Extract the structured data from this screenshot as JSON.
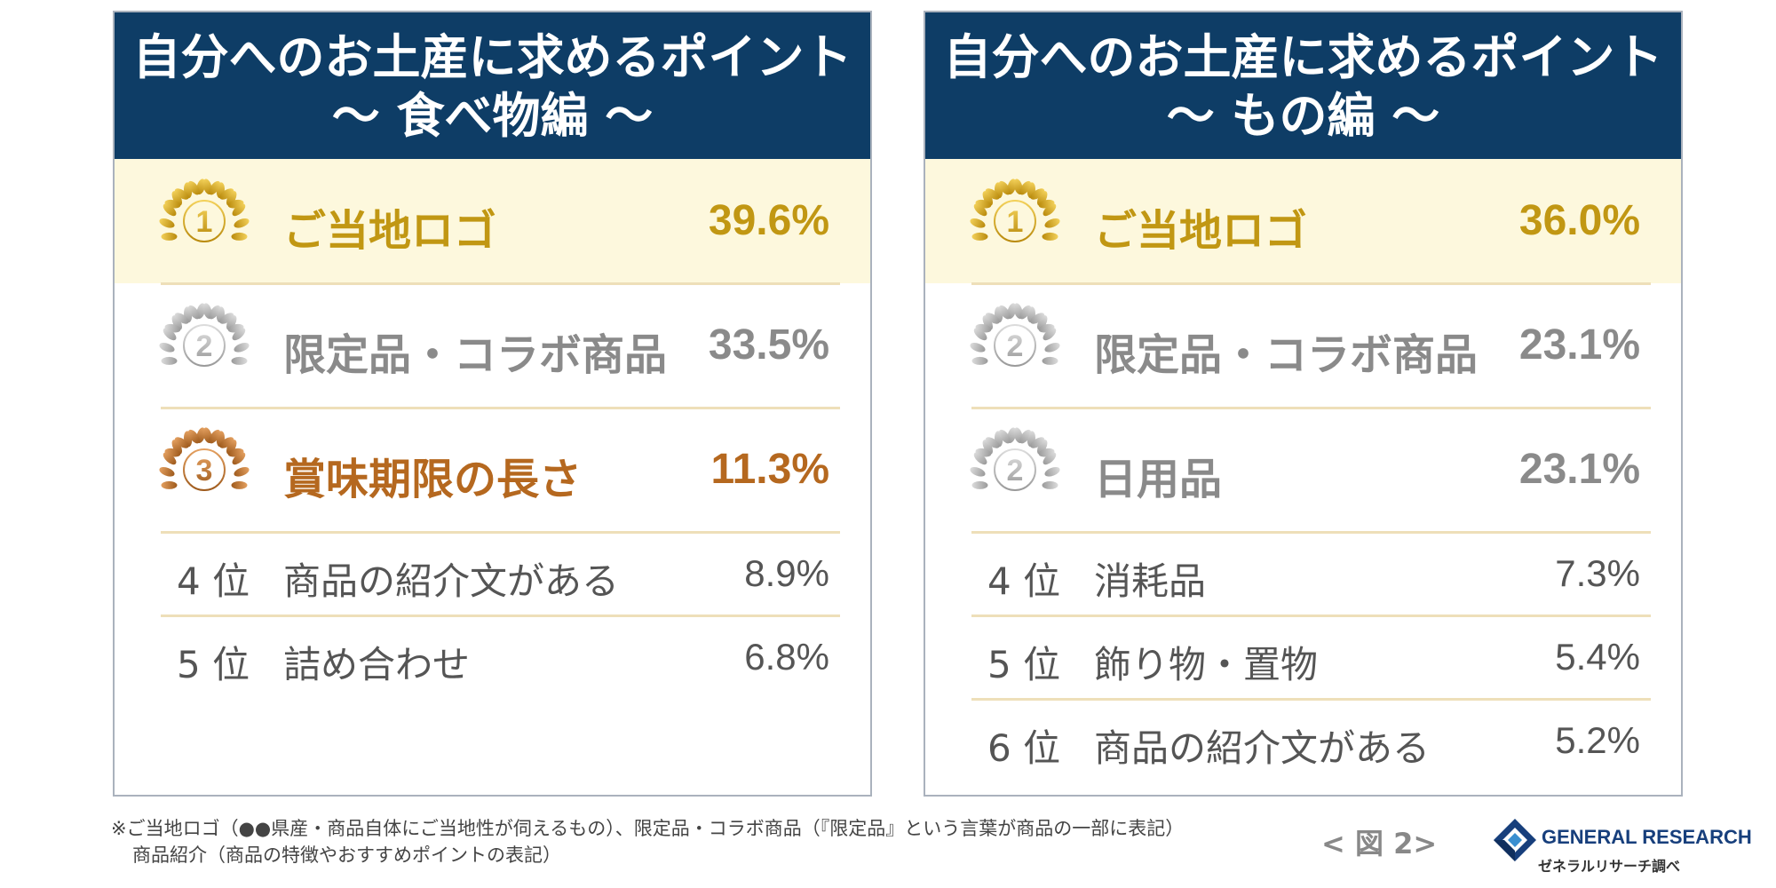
{
  "chart_data": [
    {
      "type": "table",
      "title_line1": "自分へのお土産に求めるポイント",
      "title_line2": "〜 食べ物編 〜",
      "rows": [
        {
          "rank": 1,
          "rank_label": "1",
          "medal": "gold",
          "label": "ご当地ロゴ",
          "value": 39.6,
          "value_text": "39.6%"
        },
        {
          "rank": 2,
          "rank_label": "2",
          "medal": "silver",
          "label": "限定品・コラボ商品",
          "value": 33.5,
          "value_text": "33.5%"
        },
        {
          "rank": 3,
          "rank_label": "3",
          "medal": "bronze",
          "label": "賞味期限の長さ",
          "value": 11.3,
          "value_text": "11.3%"
        },
        {
          "rank": 4,
          "rank_label": "4 位",
          "medal": "none",
          "label": "商品の紹介文がある",
          "value": 8.9,
          "value_text": "8.9%"
        },
        {
          "rank": 5,
          "rank_label": "5 位",
          "medal": "none",
          "label": "詰め合わせ",
          "value": 6.8,
          "value_text": "6.8%"
        }
      ]
    },
    {
      "type": "table",
      "title_line1": "自分へのお土産に求めるポイント",
      "title_line2": "〜 もの編 〜",
      "rows": [
        {
          "rank": 1,
          "rank_label": "1",
          "medal": "gold",
          "label": "ご当地ロゴ",
          "value": 36.0,
          "value_text": "36.0%"
        },
        {
          "rank": 2,
          "rank_label": "2",
          "medal": "silver",
          "label": "限定品・コラボ商品",
          "value": 23.1,
          "value_text": "23.1%"
        },
        {
          "rank": 2,
          "rank_label": "2",
          "medal": "silver",
          "label": "日用品",
          "value": 23.1,
          "value_text": "23.1%"
        },
        {
          "rank": 4,
          "rank_label": "4 位",
          "medal": "none",
          "label": "消耗品",
          "value": 7.3,
          "value_text": "7.3%"
        },
        {
          "rank": 5,
          "rank_label": "5 位",
          "medal": "none",
          "label": "飾り物・置物",
          "value": 5.4,
          "value_text": "5.4%"
        },
        {
          "rank": 6,
          "rank_label": "6 位",
          "medal": "none",
          "label": "商品の紹介文がある",
          "value": 5.2,
          "value_text": "5.2%"
        }
      ]
    }
  ],
  "colors": {
    "header_bg": "#0e3d66",
    "highlight_bg": "#fdf8dd",
    "gold": "#c19713",
    "silver": "#8a8a8a",
    "bronze": "#b5681f",
    "separator": "#eedfb9"
  },
  "footer": {
    "note_line1": "※ご当地ロゴ（●●県産・商品自体にご当地性が伺えるもの）、限定品・コラボ商品（『限定品』という言葉が商品の一部に表記）",
    "note_line2": "商品紹介（商品の特徴やおすすめポイントの表記）",
    "figure_label": "< 図 2>",
    "logo_en": "GENERAL RESEARCH",
    "logo_jp": "ゼネラルリサーチ調べ"
  }
}
